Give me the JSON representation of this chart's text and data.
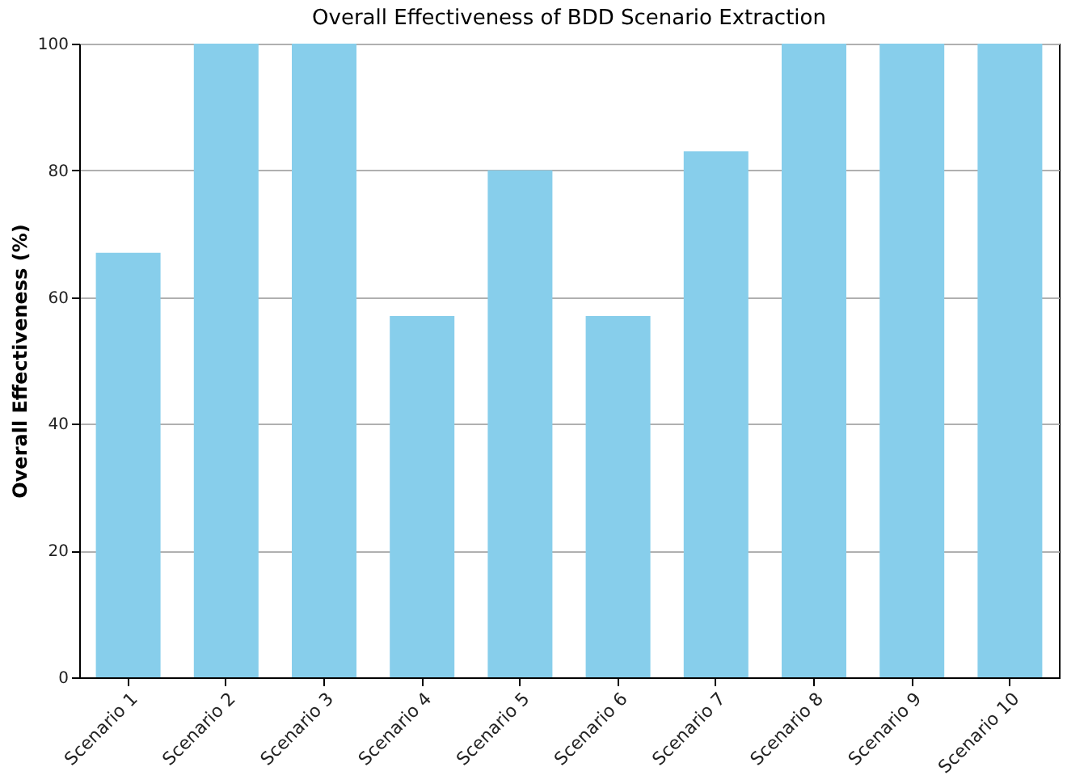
{
  "chart_data": {
    "type": "bar",
    "title": "Overall Effectiveness of BDD Scenario Extraction",
    "ylabel": "Overall Effectiveness (%)",
    "categories": [
      "Scenario 1",
      "Scenario 2",
      "Scenario 3",
      "Scenario 4",
      "Scenario 5",
      "Scenario 6",
      "Scenario 7",
      "Scenario 8",
      "Scenario 9",
      "Scenario 10"
    ],
    "values": [
      67,
      100,
      100,
      57,
      80,
      57,
      83,
      100,
      100,
      100
    ],
    "color": "#87ceeb",
    "ylim": [
      0,
      100
    ],
    "yticks": [
      0,
      20,
      40,
      60,
      80,
      100
    ],
    "grid": "y"
  }
}
